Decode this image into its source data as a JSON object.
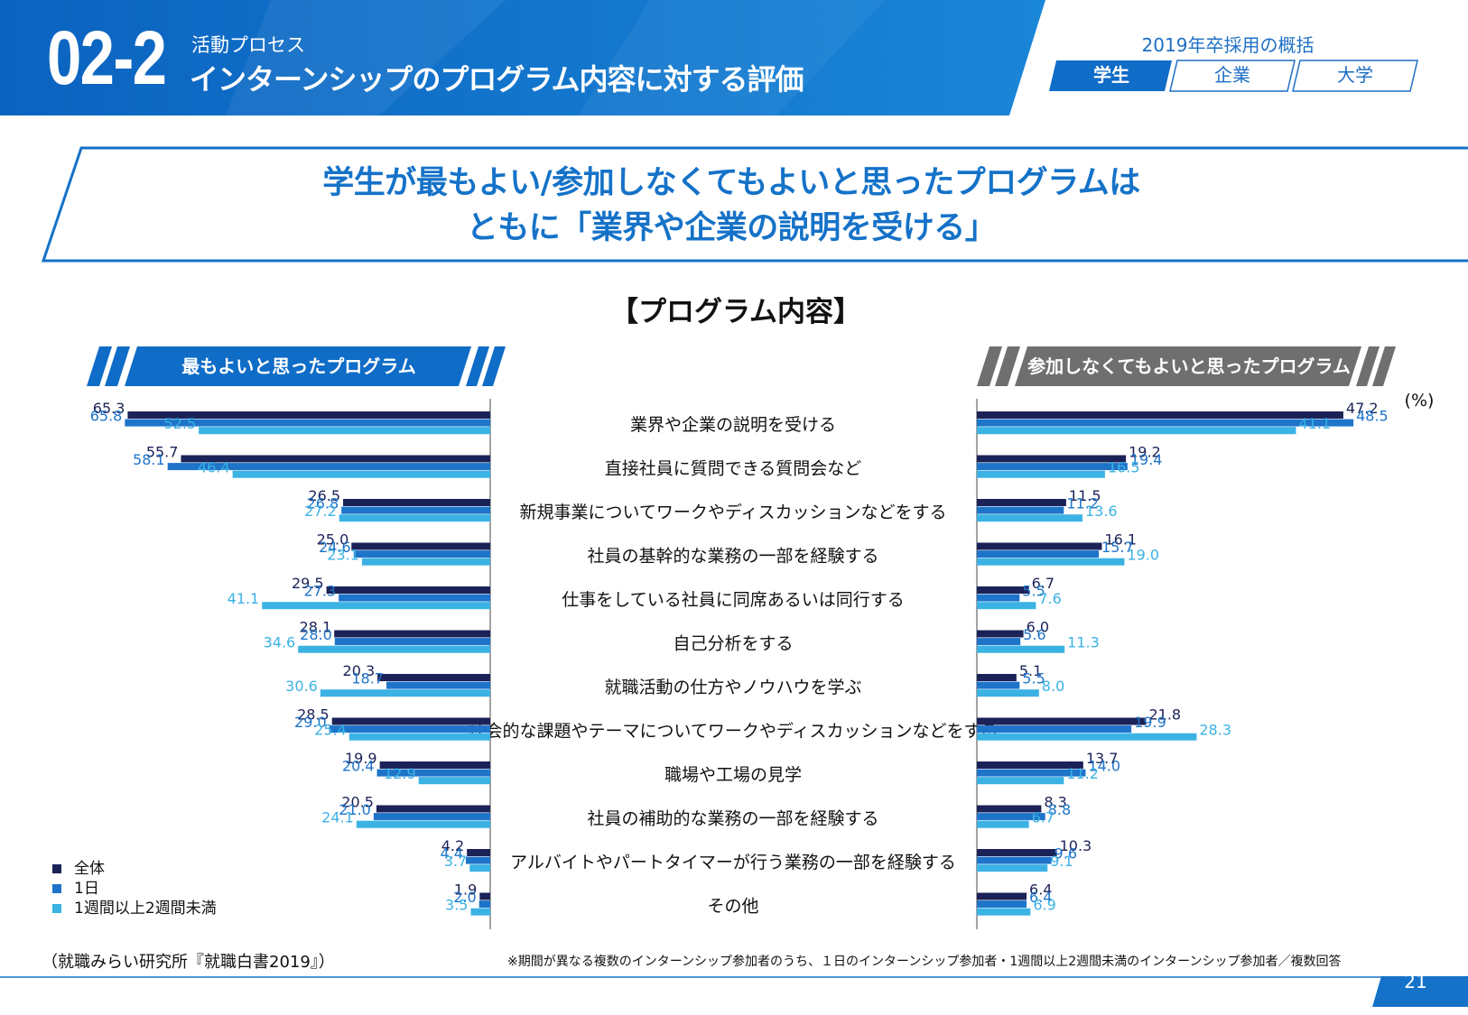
{
  "header": {
    "section_number": "02-2",
    "section_category": "活動プロセス",
    "section_title": "インターンシップのプログラム内容に対する評価",
    "overview_label": "2019年卒採用の概括",
    "tabs": [
      "学生",
      "企業",
      "大学"
    ],
    "active_tab": "学生"
  },
  "headline": {
    "line1": "学生が最もよい/参加しなくてもよいと思ったプログラムは",
    "line2": "ともに「業界や企業の説明を受ける」"
  },
  "program_title": "【プログラム内容】",
  "banners": {
    "left": "最もよいと思ったプログラム",
    "right": "参加しなくてもよいと思ったプログラム"
  },
  "colors": {
    "navy": "#1b2257",
    "blue": "#1e74c9",
    "light_blue": "#3bb2e4",
    "header_blue": "#0f6cc7",
    "gray_banner": "#6f6f6f"
  },
  "chart_data": {
    "type": "bar",
    "unit": "(%)",
    "categories": [
      "業界や企業の説明を受ける",
      "直接社員に質問できる質問会など",
      "新規事業についてワークやディスカッションなどをする",
      "社員の基幹的な業務の一部を経験する",
      "仕事をしている社員に同席あるいは同行する",
      "自己分析をする",
      "就職活動の仕方やノウハウを学ぶ",
      "社会的な課題やテーマについてワークやディスカッションなどをする",
      "職場や工場の見学",
      "社員の補助的な業務の一部を経験する",
      "アルバイトやパートタイマーが行う業務の一部を経験する",
      "その他"
    ],
    "panels": [
      {
        "name": "最もよいと思ったプログラム",
        "direction": "left",
        "series": [
          {
            "name": "全体",
            "labels": [
              "65.3",
              "55.7",
              "26.5",
              "25.0",
              "29.5",
              "28.1",
              "20.3",
              "28.5",
              "19.9",
              "20.5",
              "4.2",
              "1.9"
            ]
          },
          {
            "name": "1日",
            "labels": [
              "65.8",
              "58.1",
              "26.8",
              "24.6",
              "27.3",
              "28.0",
              "18.7",
              "29.0",
              "20.4",
              "21.0",
              "4.4",
              "2.0"
            ]
          },
          {
            "name": "1週間以上2週間未満",
            "labels": [
              "52.5",
              "46.4",
              "27.2",
              "23.1",
              "41.1",
              "34.6",
              "30.6",
              "25.4",
              "12.9",
              "24.1",
              "3.7",
              "3.5"
            ]
          }
        ]
      },
      {
        "name": "参加しなくてもよいと思ったプログラム",
        "direction": "right",
        "series": [
          {
            "name": "全体",
            "labels": [
              "47.2",
              "19.2",
              "11.5",
              "16.1",
              "6.7",
              "6.0",
              "5.1",
              "21.8",
              "13.7",
              "8.3",
              "10.3",
              "6.4"
            ]
          },
          {
            "name": "1日",
            "labels": [
              "48.5",
              "19.4",
              "11.2",
              "15.7",
              "5.5",
              "5.6",
              "5.5",
              "19.9",
              "14.0",
              "8.8",
              "9.6",
              "6.4"
            ]
          },
          {
            "name": "1週間以上2週間未満",
            "labels": [
              "41.1",
              "16.5",
              "13.6",
              "19.0",
              "7.6",
              "11.3",
              "8.0",
              "28.3",
              "11.2",
              "6.7",
              "9.1",
              "6.9"
            ]
          }
        ]
      }
    ],
    "legend": [
      "全体",
      "1日",
      "1週間以上2週間未満"
    ]
  },
  "source": "（就職みらい研究所『就職白書2019』）",
  "footnote": "※期間が異なる複数のインターンシップ参加者のうち、１日のインターンシップ参加者・1週間以上2週間未満のインターンシップ参加者／複数回答",
  "page_number": "21"
}
